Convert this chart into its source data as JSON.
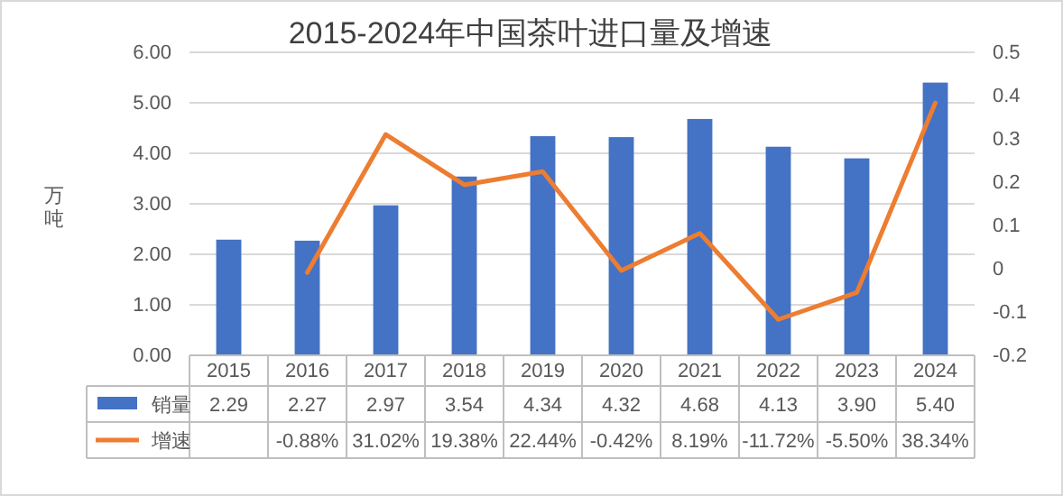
{
  "chart_data": {
    "type": "bar",
    "title": "2015-2024年中国茶叶进口量及增速",
    "ylabel": "万吨",
    "categories": [
      "2015",
      "2016",
      "2017",
      "2018",
      "2019",
      "2020",
      "2021",
      "2022",
      "2023",
      "2024"
    ],
    "series": [
      {
        "name": "销量",
        "color": "#4472c4",
        "values": [
          2.29,
          2.27,
          2.97,
          3.54,
          4.34,
          4.32,
          4.68,
          4.13,
          3.9,
          5.4
        ],
        "value_labels": [
          "2.29",
          "2.27",
          "2.97",
          "3.54",
          "4.34",
          "4.32",
          "4.68",
          "4.13",
          "3.90",
          "5.40"
        ]
      },
      {
        "name": "增速",
        "type": "line",
        "axis": "y2",
        "color": "#ed7d31",
        "values": [
          null,
          -0.0088,
          0.3102,
          0.1938,
          0.2244,
          -0.0042,
          0.0819,
          -0.1172,
          -0.055,
          0.3834
        ],
        "value_labels": [
          null,
          "-0.88%",
          "31.02%",
          "19.38%",
          "22.44%",
          "-0.42%",
          "8.19%",
          "-11.72%",
          "-5.50%",
          "38.34%"
        ]
      }
    ],
    "ylim": [
      0,
      6
    ],
    "yticks": [
      {
        "value": 0,
        "label": "0.00"
      },
      {
        "value": 1,
        "label": "1.00"
      },
      {
        "value": 2,
        "label": "2.00"
      },
      {
        "value": 3,
        "label": "3.00"
      },
      {
        "value": 4,
        "label": "4.00"
      },
      {
        "value": 5,
        "label": "5.00"
      },
      {
        "value": 6,
        "label": "6.00"
      }
    ],
    "y2lim": [
      -0.2,
      0.5
    ],
    "y2ticks": [
      -0.2,
      -0.1,
      0,
      0.1,
      0.2,
      0.3,
      0.4,
      0.5
    ],
    "grid": "y",
    "legend": "bottom",
    "marker": "none",
    "line_style": "solid"
  }
}
